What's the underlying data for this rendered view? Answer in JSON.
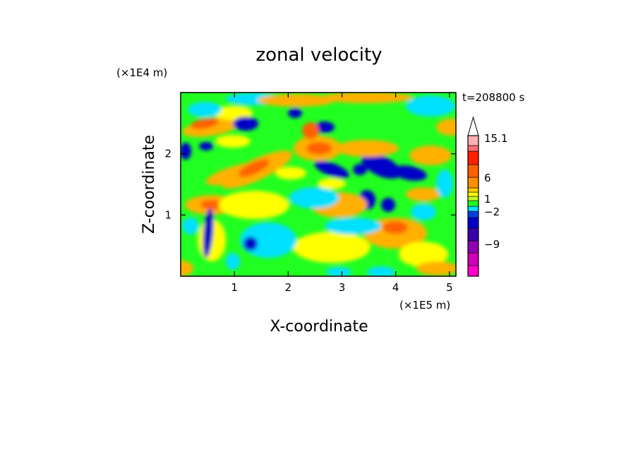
{
  "chart_data": {
    "type": "heatmap",
    "title": "zonal velocity",
    "xlabel": "X-coordinate",
    "ylabel": "Z-coordinate",
    "x_unit": "(×1E5 m)",
    "y_unit": "(×1E4 m)",
    "time_label": "t=208800 s",
    "x_ticks": [
      "1",
      "2",
      "3",
      "4",
      "5"
    ],
    "x_tick_values": [
      1,
      2,
      3,
      4,
      5
    ],
    "y_ticks": [
      "1",
      "2"
    ],
    "y_tick_values": [
      1,
      2
    ],
    "xlim": [
      0,
      5.12
    ],
    "ylim": [
      0,
      3.0
    ],
    "colorbar": {
      "tick_labels": [
        "15.1",
        "6",
        "1",
        "−2",
        "−9"
      ],
      "colors": [
        "#ff00c8",
        "#d000b8",
        "#9000b0",
        "#3a00aa",
        "#0000c8",
        "#0040e0",
        "#00e0ff",
        "#20ff20",
        "#c0ff20",
        "#ffff00",
        "#ffd000",
        "#ff9000",
        "#ff6000",
        "#ff2000",
        "#ff7070",
        "#ffb0b0",
        "#ffffff"
      ]
    },
    "field_palette": {
      "strong_negative": "#0000c8",
      "moderate_negative": "#00e0ff",
      "weak": "#20ff20",
      "weak_positive": "#ffff00",
      "moderate_positive": "#ffb000",
      "strong_positive": "#ff6000",
      "very_strong_positive": "#ff2000"
    }
  }
}
